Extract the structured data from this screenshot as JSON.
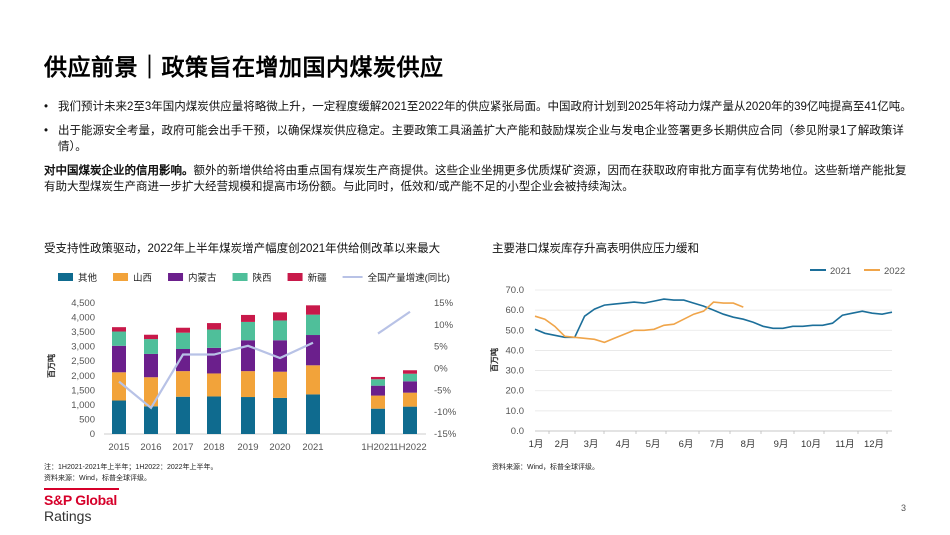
{
  "page": {
    "title": "供应前景｜政策旨在增加国内煤炭供应",
    "bullets": [
      "我们预计未来2至3年国内煤炭供应量将略微上升，一定程度缓解2021至2022年的供应紧张局面。中国政府计划到2025年将动力煤产量从2020年的39亿吨提高至41亿吨。",
      "出于能源安全考量，政府可能会出手干预，以确保煤炭供应稳定。主要政策工具涵盖扩大产能和鼓励煤炭企业与发电企业签署更多长期供应合同（参见附录1了解政策详情）。"
    ],
    "para_bold": "对中国煤炭企业的信用影响。",
    "para_text": "额外的新增供给将由重点国有煤炭生产商提供。这些企业坐拥更多优质煤矿资源，因而在获取政府审批方面享有优势地位。这些新增产能批复有助大型煤炭生产商进一步扩大经营规模和提高市场份额。与此同时，低效和/或产能不足的小型企业会被持续淘汰。",
    "left_chart_title": "受支持性政策驱动，2022年上半年煤炭增产幅度创2021年供给侧改革以来最大",
    "right_chart_title": "主要港口煤炭库存升高表明供应压力缓和",
    "left_note_line1": "注：1H2021-2021年上半年；1H2022：2022年上半年。",
    "left_note_line2": "资料来源：Wind，标普全球评级。",
    "right_note": "资料来源：Wind，标普全球评级。",
    "logo_top": "S&P Global",
    "logo_bottom": "Ratings",
    "page_number": "3"
  },
  "colors": {
    "brand_red": "#d6002a",
    "other": "#0f6b8f",
    "shanxi": "#f2a33a",
    "inner_mongolia": "#6b1f8c",
    "shaanxi": "#4fbf9a",
    "xinjiang": "#c8194a",
    "growth": "#b8c2e6",
    "y2021": "#1c6f9a",
    "y2022": "#f0a54a"
  },
  "chart_data": [
    {
      "type": "bar",
      "stacked": true,
      "categories": [
        "2015",
        "2016",
        "2017",
        "2018",
        "2019",
        "2020",
        "2021",
        "1H2021",
        "1H2022"
      ],
      "series": [
        {
          "name": "其他",
          "values": [
            1150,
            950,
            1280,
            1290,
            1270,
            1240,
            1360,
            870,
            940
          ]
        },
        {
          "name": "山西",
          "values": [
            970,
            1000,
            880,
            790,
            890,
            900,
            1000,
            450,
            480
          ]
        },
        {
          "name": "内蒙古",
          "values": [
            910,
            800,
            760,
            880,
            1060,
            1080,
            1040,
            340,
            390
          ]
        },
        {
          "name": "陕西",
          "values": [
            490,
            510,
            560,
            630,
            630,
            680,
            700,
            220,
            260
          ]
        },
        {
          "name": "新疆",
          "values": [
            150,
            150,
            170,
            220,
            240,
            280,
            320,
            80,
            120
          ]
        }
      ],
      "line_series": {
        "name": "全国产量增速(同比)",
        "values": [
          -3,
          -9,
          3.2,
          3.2,
          5.2,
          2.4,
          5.9,
          8,
          13
        ]
      },
      "y_label": "百万吨",
      "y_ticks": [
        "4,500",
        "4,000",
        "3,500",
        "3,000",
        "2,500",
        "2,000",
        "1,500",
        "1,000",
        "500",
        "0"
      ],
      "y_right_ticks": [
        "15%",
        "10%",
        "5%",
        "0%",
        "-5%",
        "-10%",
        "-15%"
      ],
      "ylim": [
        0,
        4500
      ],
      "ylim_right": [
        -15,
        15
      ]
    },
    {
      "type": "line",
      "x_ticks": [
        "1月",
        "2月",
        "3月",
        "4月",
        "5月",
        "6月",
        "7月",
        "8月",
        "9月",
        "10月",
        "11月",
        "12月"
      ],
      "y_label": "百万吨",
      "y_ticks": [
        "70.0",
        "60.0",
        "50.0",
        "40.0",
        "30.0",
        "20.0",
        "10.0",
        "0.0"
      ],
      "ylim": [
        0,
        70
      ],
      "legend_position": "top-right",
      "series": [
        {
          "name": "2021",
          "values": [
            50.5,
            48.5,
            47.5,
            46.5,
            46.5,
            57,
            60.5,
            62.5,
            63,
            63.5,
            64,
            63.5,
            64.5,
            65.5,
            65,
            65,
            63.5,
            62,
            60,
            58,
            56.5,
            55.5,
            54,
            52,
            51,
            51,
            52,
            52,
            52.5,
            52.5,
            53.5,
            57.5,
            58.5,
            59.5,
            58.5,
            58,
            59
          ]
        },
        {
          "name": "2022",
          "values": [
            57,
            55.5,
            52,
            47,
            46.5,
            46,
            45.5,
            44,
            46,
            48,
            50,
            50,
            50.5,
            52.5,
            53,
            55.5,
            58,
            59.5,
            64,
            63.5,
            63.5,
            61.5
          ]
        }
      ]
    }
  ]
}
